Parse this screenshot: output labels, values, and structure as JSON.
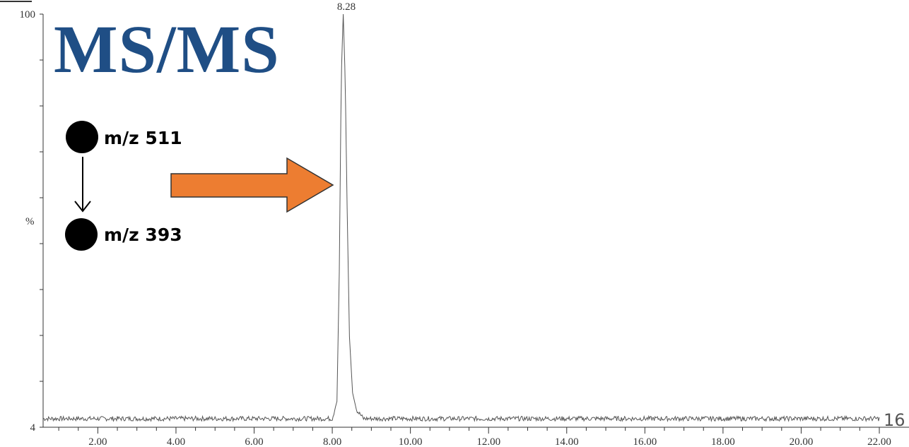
{
  "title": "MS/MS",
  "title_color": "#1f4e85",
  "arrow_color": "#ed7d31",
  "trace_color": "#555555",
  "precursor_label": "m/z 511",
  "product_label": "m/z 393",
  "slide_number": "16",
  "chart_data": {
    "type": "line",
    "title": "",
    "xlabel": "",
    "ylabel": "%",
    "x_ticks": [
      "2.00",
      "4.00",
      "6.00",
      "8.00",
      "10.00",
      "12.00",
      "14.00",
      "16.00",
      "18.00",
      "20.00",
      "22.00"
    ],
    "y_tick_labels": [
      "100",
      "4"
    ],
    "xlim": [
      0.6,
      22.0
    ],
    "ylim": [
      4,
      100
    ],
    "peak_label": "8.28",
    "series": [
      {
        "x": [
          0.6,
          8.0,
          8.12,
          8.18,
          8.23,
          8.28,
          8.33,
          8.38,
          8.44,
          8.52,
          8.62,
          8.8,
          22.0
        ],
        "y": [
          6,
          6,
          10,
          40,
          85,
          100,
          85,
          55,
          25,
          12,
          8,
          6,
          6
        ]
      }
    ]
  }
}
